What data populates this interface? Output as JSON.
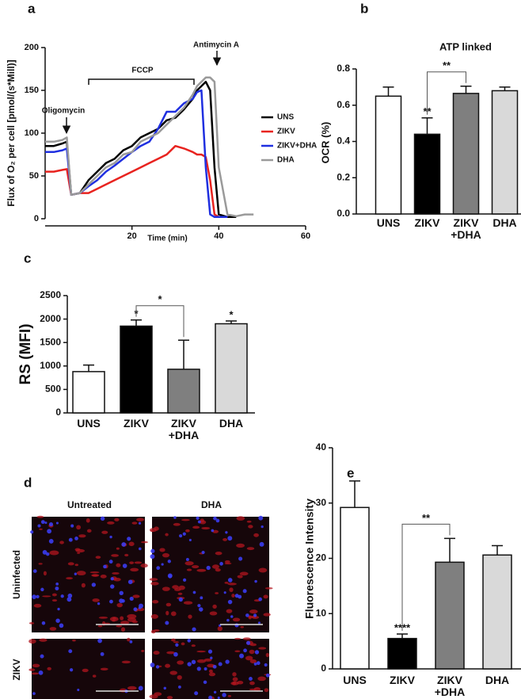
{
  "chart_data": [
    {
      "type": "line",
      "label": "a",
      "xlabel": "Time (min)",
      "ylabel": "Flux of O₂ per cell [pmol/(s*Mill)]",
      "xlim": [
        0,
        60
      ],
      "xticks": [
        20,
        40,
        60
      ],
      "ylim": [
        0,
        200
      ],
      "yticks": [
        0,
        50,
        100,
        150,
        200
      ],
      "annotations": [
        "Oligomycin",
        "FCCP",
        "Antimycin A"
      ],
      "x": [
        0,
        2,
        4,
        5,
        6,
        8,
        10,
        12,
        14,
        16,
        18,
        20,
        22,
        24,
        26,
        28,
        30,
        32,
        34,
        35,
        36,
        37,
        38,
        39,
        40,
        42,
        44,
        46,
        48
      ],
      "series": [
        {
          "name": "UNS",
          "color": "#000000",
          "values": [
            85,
            85,
            88,
            90,
            28,
            30,
            45,
            55,
            65,
            70,
            80,
            85,
            95,
            100,
            105,
            115,
            118,
            128,
            140,
            150,
            155,
            160,
            150,
            60,
            5,
            2,
            2,
            null,
            null
          ]
        },
        {
          "name": "ZIKV",
          "color": "#e8231f",
          "values": [
            55,
            55,
            57,
            58,
            28,
            30,
            30,
            35,
            40,
            45,
            50,
            55,
            60,
            65,
            70,
            75,
            85,
            82,
            78,
            75,
            75,
            72,
            45,
            5,
            2,
            2,
            null,
            null,
            null
          ]
        },
        {
          "name": "ZIKV+DHA",
          "color": "#1f2fe0",
          "values": [
            78,
            78,
            80,
            82,
            28,
            30,
            38,
            45,
            55,
            62,
            70,
            78,
            85,
            90,
            105,
            125,
            125,
            135,
            140,
            148,
            150,
            60,
            5,
            2,
            2,
            2,
            null,
            null,
            null
          ]
        },
        {
          "name": "DHA",
          "color": "#9a9a9a",
          "values": [
            90,
            90,
            92,
            95,
            28,
            30,
            40,
            50,
            60,
            65,
            75,
            78,
            90,
            95,
            100,
            110,
            120,
            130,
            145,
            155,
            160,
            165,
            165,
            160,
            60,
            5,
            3,
            5,
            5
          ]
        }
      ]
    },
    {
      "type": "bar",
      "label": "b",
      "title": "ATP linked",
      "ylabel": "OCR (%)",
      "categories": [
        "UNS",
        "ZIKV",
        "ZIKV\n+DHA",
        "DHA"
      ],
      "values": [
        0.65,
        0.44,
        0.665,
        0.68
      ],
      "errors": [
        0.05,
        0.09,
        0.04,
        0.02
      ],
      "colors": [
        "#ffffff",
        "#000000",
        "#7f7f7f",
        "#d9d9d9"
      ],
      "ylim": [
        0,
        0.8
      ],
      "yticks": [
        {
          "value": 0,
          "label": "0.0"
        },
        0.2,
        0.4,
        0.6,
        0.8
      ],
      "bar_annotations": [
        null,
        "**",
        null,
        null
      ],
      "brackets": [
        {
          "text": "**",
          "between": [
            "ZIKV",
            "ZIKV\n+DHA"
          ]
        }
      ]
    },
    {
      "type": "bar",
      "label": "c",
      "ylabel": "RS (MFI)",
      "categories": [
        "UNS",
        "ZIKV",
        "ZIKV\n+DHA",
        "DHA"
      ],
      "values": [
        880,
        1850,
        930,
        1900
      ],
      "errors": [
        140,
        130,
        620,
        60
      ],
      "colors": [
        "#ffffff",
        "#000000",
        "#7f7f7f",
        "#d9d9d9"
      ],
      "ylim": [
        0,
        2500
      ],
      "yticks": [
        0,
        500,
        1000,
        1500,
        2000,
        2500
      ],
      "bar_annotations": [
        null,
        "*",
        null,
        "*"
      ],
      "brackets": [
        {
          "text": "*",
          "between": [
            "ZIKV",
            "ZIKV\n+DHA"
          ]
        }
      ]
    },
    {
      "type": "bar",
      "label": "e",
      "ylabel": "Fluorescence Intensity",
      "categories": [
        "UNS",
        "ZIKV",
        "ZIKV\n+DHA",
        "DHA"
      ],
      "values": [
        29.2,
        5.5,
        19.3,
        20.6
      ],
      "errors": [
        4.8,
        0.8,
        4.3,
        1.7
      ],
      "colors": [
        "#ffffff",
        "#000000",
        "#7f7f7f",
        "#d9d9d9"
      ],
      "ylim": [
        0,
        40
      ],
      "yticks": [
        0,
        10,
        20,
        30,
        40
      ],
      "bar_annotations": [
        null,
        "****",
        null,
        null
      ],
      "brackets": [
        {
          "text": "**",
          "between": [
            "ZIKV",
            "ZIKV\n+DHA"
          ]
        }
      ]
    }
  ],
  "image_panel": {
    "label": "d",
    "columns": [
      "Untreated",
      "DHA"
    ],
    "rows": [
      "Uninfected",
      "ZIKV"
    ]
  }
}
